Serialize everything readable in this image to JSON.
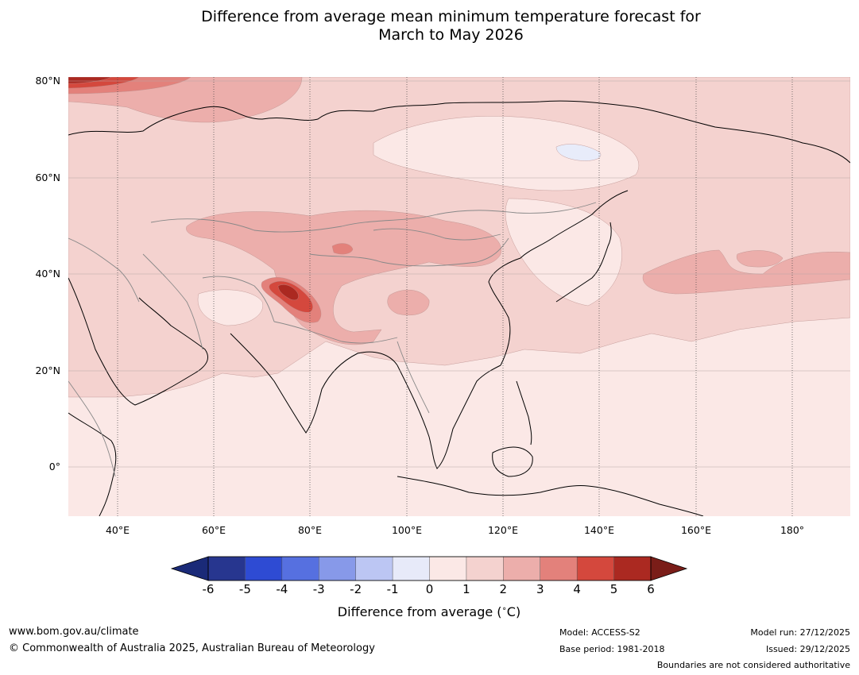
{
  "title": {
    "line1": "Difference from average mean minimum temperature forecast for",
    "line2": "March to May 2026"
  },
  "map": {
    "lat_labels": [
      "80°N",
      "60°N",
      "40°N",
      "20°N",
      "0°"
    ],
    "lon_labels": [
      "40°E",
      "60°E",
      "80°E",
      "100°E",
      "120°E",
      "140°E",
      "160°E",
      "180°"
    ],
    "colors": {
      "anom_0_1": "#fbe8e6",
      "anom_1_2": "#f4d2cf",
      "anom_2_3": "#ecaeab",
      "anom_3_4": "#e3817b",
      "anom_4_5": "#d4483d",
      "anom_5_6": "#ab2921",
      "anom_neg_0_1": "#e8ecfa"
    }
  },
  "colorbar": {
    "ticks": [
      "-6",
      "-5",
      "-4",
      "-3",
      "-2",
      "-1",
      "0",
      "1",
      "2",
      "3",
      "4",
      "5",
      "6"
    ],
    "colors": [
      "#27368f",
      "#2e4bd3",
      "#5670e0",
      "#8799e9",
      "#bcc6f3",
      "#e7eaf9",
      "#fbe8e6",
      "#f4d2cf",
      "#ecaeab",
      "#e3817b",
      "#d4483d",
      "#ab2921"
    ],
    "under_color": "#1a2a78",
    "over_color": "#7a1d18",
    "label": "Difference from average ($^\\circ$C)"
  },
  "footer": {
    "website": "www.bom.gov.au/climate",
    "copyright": "© Commonwealth of Australia 2025, Australian Bureau of Meteorology",
    "model": "Model: ACCESS-S2",
    "base_period": "Base period: 1981-2018",
    "model_run": "Model run: 27/12/2025",
    "issued": "Issued: 29/12/2025",
    "disclaimer": "Boundaries are not considered authoritative"
  }
}
